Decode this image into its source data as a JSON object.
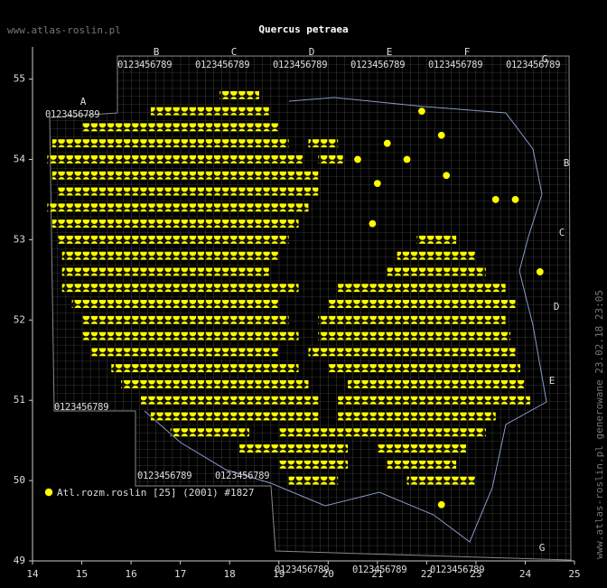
{
  "site": "www.atlas-roslin.pl",
  "title": "Quercus petraea",
  "legend": "Atl.rozm.roslin [25] (2001) #1827",
  "footer": "www.atlas-roslin.pl generowane 23.02.18 23:05",
  "grid_letters": [
    "A",
    "B",
    "C",
    "D",
    "E",
    "F",
    "G"
  ],
  "digit_strip": "0123456789",
  "map": {
    "type": "map",
    "color": "#ffff00",
    "xlim": [
      14,
      25
    ],
    "ylim": [
      49,
      55.4
    ],
    "xticks": [
      14,
      15,
      16,
      17,
      18,
      19,
      20,
      21,
      22,
      23,
      24,
      25
    ],
    "yticks": [
      49,
      50,
      51,
      52,
      53,
      54,
      55
    ],
    "coverage": [
      {
        "lat": 54.8,
        "ranges": [
          [
            17.8,
            18.6
          ]
        ]
      },
      {
        "lat": 54.6,
        "ranges": [
          [
            16.4,
            18.8
          ]
        ]
      },
      {
        "lat": 54.4,
        "ranges": [
          [
            15.0,
            19.0
          ]
        ]
      },
      {
        "lat": 54.2,
        "ranges": [
          [
            14.4,
            19.2
          ],
          [
            19.6,
            20.2
          ]
        ]
      },
      {
        "lat": 54.0,
        "ranges": [
          [
            14.3,
            19.5
          ],
          [
            19.8,
            20.3
          ]
        ]
      },
      {
        "lat": 53.8,
        "ranges": [
          [
            14.4,
            19.8
          ]
        ]
      },
      {
        "lat": 53.6,
        "ranges": [
          [
            14.5,
            19.8
          ]
        ]
      },
      {
        "lat": 53.4,
        "ranges": [
          [
            14.3,
            19.6
          ]
        ]
      },
      {
        "lat": 53.2,
        "ranges": [
          [
            14.4,
            19.4
          ]
        ]
      },
      {
        "lat": 53.0,
        "ranges": [
          [
            14.5,
            19.2
          ],
          [
            21.8,
            22.6
          ]
        ]
      },
      {
        "lat": 52.8,
        "ranges": [
          [
            14.6,
            19.0
          ],
          [
            21.4,
            23.0
          ]
        ]
      },
      {
        "lat": 52.6,
        "ranges": [
          [
            14.6,
            18.8
          ],
          [
            21.2,
            23.2
          ]
        ]
      },
      {
        "lat": 52.4,
        "ranges": [
          [
            14.6,
            19.4
          ],
          [
            20.2,
            23.6
          ]
        ]
      },
      {
        "lat": 52.2,
        "ranges": [
          [
            14.8,
            19.0
          ],
          [
            20.0,
            23.8
          ]
        ]
      },
      {
        "lat": 52.0,
        "ranges": [
          [
            15.0,
            19.2
          ],
          [
            19.8,
            23.6
          ]
        ]
      },
      {
        "lat": 51.8,
        "ranges": [
          [
            15.0,
            19.4
          ],
          [
            19.8,
            23.7
          ]
        ]
      },
      {
        "lat": 51.6,
        "ranges": [
          [
            15.2,
            19.0
          ],
          [
            19.6,
            23.8
          ]
        ]
      },
      {
        "lat": 51.4,
        "ranges": [
          [
            15.6,
            19.4
          ],
          [
            20.0,
            23.9
          ]
        ]
      },
      {
        "lat": 51.2,
        "ranges": [
          [
            15.8,
            19.6
          ],
          [
            20.4,
            24.0
          ]
        ]
      },
      {
        "lat": 51.0,
        "ranges": [
          [
            16.2,
            19.8
          ],
          [
            20.2,
            24.1
          ]
        ]
      },
      {
        "lat": 50.8,
        "ranges": [
          [
            16.4,
            19.8
          ],
          [
            20.2,
            23.4
          ]
        ]
      },
      {
        "lat": 50.6,
        "ranges": [
          [
            16.8,
            18.4
          ],
          [
            19.0,
            23.2
          ]
        ]
      },
      {
        "lat": 50.4,
        "ranges": [
          [
            18.2,
            20.4
          ],
          [
            21.0,
            22.8
          ]
        ]
      },
      {
        "lat": 50.2,
        "ranges": [
          [
            19.0,
            20.4
          ],
          [
            21.2,
            22.6
          ]
        ]
      },
      {
        "lat": 50.0,
        "ranges": [
          [
            19.2,
            20.2
          ],
          [
            21.6,
            23.0
          ]
        ]
      }
    ],
    "points": [
      [
        20.6,
        54.0
      ],
      [
        21.0,
        53.7
      ],
      [
        21.6,
        54.0
      ],
      [
        21.9,
        54.6
      ],
      [
        22.3,
        54.3
      ],
      [
        23.4,
        53.5
      ],
      [
        23.8,
        53.5
      ],
      [
        20.9,
        53.2
      ],
      [
        22.4,
        53.8
      ],
      [
        21.2,
        54.2
      ],
      [
        24.3,
        52.6
      ],
      [
        22.3,
        49.7
      ]
    ]
  }
}
